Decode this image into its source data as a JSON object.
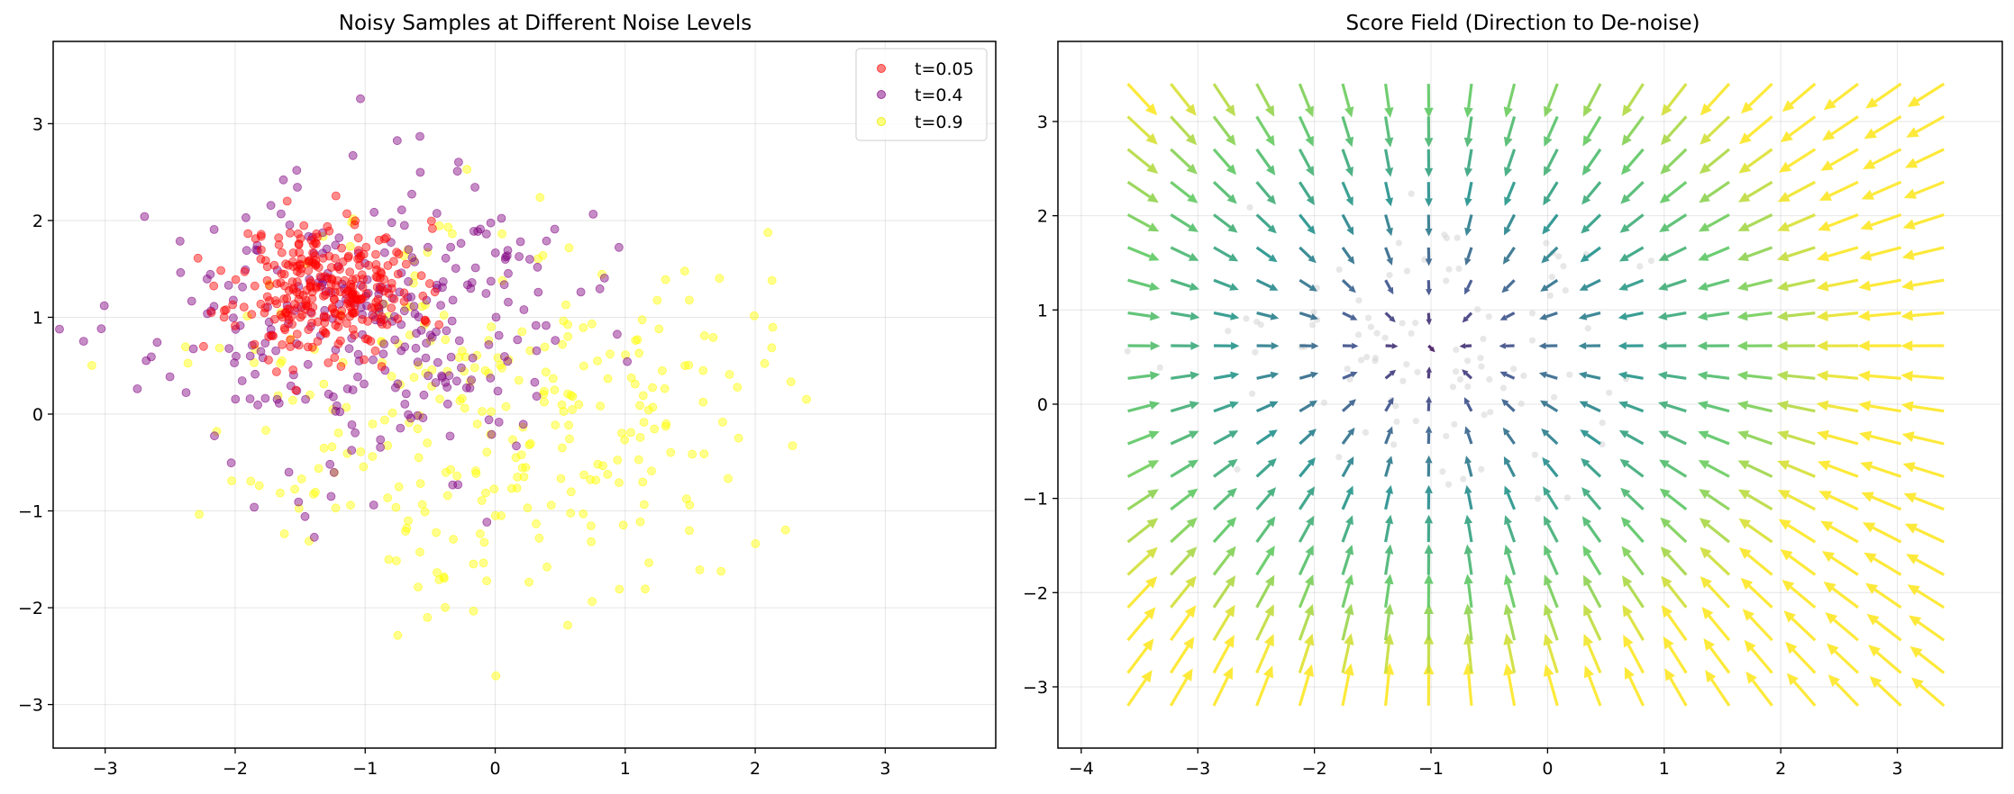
{
  "chart_data": [
    {
      "type": "scatter",
      "title": "Noisy Samples at Different Noise Levels",
      "xlim": [
        -3.4,
        3.85
      ],
      "ylim": [
        -3.45,
        3.85
      ],
      "xticks": [
        -3,
        -2,
        -1,
        0,
        1,
        2,
        3
      ],
      "yticks": [
        -3,
        -2,
        -1,
        0,
        1,
        2,
        3
      ],
      "grid": true,
      "legend_position": "top-right",
      "series": [
        {
          "name": "t=0.05",
          "color": "#ff0000",
          "count": 300,
          "mean": [
            -1.3,
            1.3
          ],
          "std": [
            0.35,
            0.35
          ],
          "seed": 11
        },
        {
          "name": "t=0.4",
          "color": "#800080",
          "count": 300,
          "mean": [
            -1.0,
            0.95
          ],
          "std": [
            0.8,
            0.75
          ],
          "seed": 23
        },
        {
          "name": "t=0.9",
          "color": "#ffff00",
          "count": 300,
          "mean": [
            0.0,
            0.1
          ],
          "std": [
            1.0,
            1.0
          ],
          "seed": 37
        }
      ]
    },
    {
      "type": "quiver",
      "title": "Score Field (Direction to De-noise)",
      "xlim": [
        -4.2,
        3.9
      ],
      "ylim": [
        -3.65,
        3.85
      ],
      "xticks": [
        -4,
        -3,
        -2,
        -1,
        0,
        1,
        2,
        3
      ],
      "yticks": [
        -3,
        -2,
        -1,
        0,
        1,
        2,
        3
      ],
      "grid": true,
      "arrow_grid": {
        "xmin": -3.6,
        "xmax": 3.4,
        "ymin": -3.2,
        "ymax": 3.4,
        "nx": 20,
        "ny": 20
      },
      "field_center": [
        -1.0,
        0.6
      ],
      "colormap": "viridis",
      "background_points": {
        "color": "#d3d3d3",
        "count": 100,
        "mean": [
          -0.7,
          0.6
        ],
        "std": [
          0.9,
          0.7
        ],
        "seed": 5
      }
    }
  ]
}
